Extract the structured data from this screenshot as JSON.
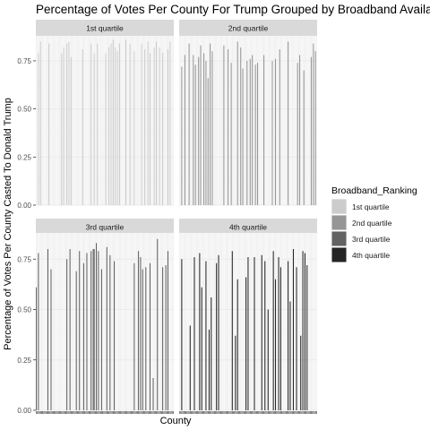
{
  "chart_data": {
    "type": "bar",
    "title": "Percentage of Votes Per County For Trump Grouped by Broadband Availability",
    "xlabel": "County",
    "ylabel": "Percentage of Votes Per County Casted To Donald Trump",
    "ylim": [
      0,
      0.88
    ],
    "y_ticks": [
      0,
      0.25,
      0.5,
      0.75
    ],
    "y_tick_labels": [
      "0.00",
      "0.25",
      "0.50",
      "0.75"
    ],
    "grid": true,
    "legend_position": "right",
    "legend": {
      "title": "Broadband_Ranking",
      "entries": [
        {
          "label": "1st quartile",
          "color": "#cccccc"
        },
        {
          "label": "2nd quartile",
          "color": "#969696"
        },
        {
          "label": "3rd quartile",
          "color": "#636363"
        },
        {
          "label": "4th quartile",
          "color": "#252525"
        }
      ]
    },
    "panels": [
      {
        "strip": "1st quartile",
        "color": "#cccccc",
        "x": [
          2,
          4,
          12,
          24,
          26,
          29,
          31,
          33,
          44,
          52,
          55,
          58,
          66,
          69,
          71,
          73,
          75,
          77,
          79,
          85,
          89,
          93,
          100,
          103,
          106,
          108,
          112,
          114,
          117,
          120,
          125,
          127
        ],
        "values": [
          0.79,
          0.85,
          0.84,
          0.79,
          0.82,
          0.84,
          0.85,
          0.77,
          0.81,
          0.84,
          0.79,
          0.84,
          0.79,
          0.82,
          0.84,
          0.86,
          0.82,
          0.8,
          0.84,
          0.86,
          0.84,
          0.8,
          0.84,
          0.81,
          0.85,
          0.79,
          0.82,
          0.85,
          0.82,
          0.79,
          0.81,
          0.85
        ]
      },
      {
        "strip": "2nd quartile",
        "color": "#969696",
        "x": [
          2,
          5,
          9,
          13,
          15,
          18,
          20,
          23,
          25,
          27,
          29,
          31,
          42,
          46,
          49,
          55,
          58,
          60,
          64,
          67,
          69,
          72,
          74,
          80,
          88,
          91,
          95,
          103,
          112,
          114,
          118,
          125,
          127,
          129
        ],
        "values": [
          0.72,
          0.78,
          0.84,
          0.78,
          0.73,
          0.77,
          0.83,
          0.79,
          0.75,
          0.66,
          0.84,
          0.8,
          0.83,
          0.81,
          0.74,
          0.85,
          0.82,
          0.71,
          0.75,
          0.76,
          0.78,
          0.73,
          0.74,
          0.78,
          0.75,
          0.76,
          0.81,
          0.85,
          0.74,
          0.78,
          0.7,
          0.77,
          0.84,
          0.8
        ]
      },
      {
        "strip": "3rd quartile",
        "color": "#636363",
        "x": [
          0,
          2,
          11,
          14,
          29,
          32,
          38,
          41,
          45,
          48,
          52,
          54,
          55,
          57,
          59,
          62,
          67,
          70,
          74,
          93,
          97,
          99,
          101,
          104,
          108,
          111,
          115,
          120,
          123,
          125
        ],
        "values": [
          0.61,
          0.78,
          0.8,
          0.7,
          0.75,
          0.8,
          0.69,
          0.79,
          0.73,
          0.78,
          0.79,
          0.8,
          0.8,
          0.83,
          0.79,
          0.7,
          0.81,
          0.77,
          0.74,
          0.73,
          0.79,
          0.76,
          0.7,
          0.71,
          0.73,
          0.16,
          0.85,
          0.71,
          0.72,
          0.79
        ]
      },
      {
        "strip": "4th quartile",
        "color": "#252525",
        "x": [
          2,
          10,
          14,
          19,
          21,
          25,
          28,
          30,
          35,
          37,
          50,
          53,
          55,
          63,
          65,
          71,
          78,
          81,
          84,
          89,
          91,
          94,
          96,
          103,
          105,
          108,
          111,
          115,
          117,
          119,
          121
        ],
        "values": [
          0.75,
          0.42,
          0.76,
          0.78,
          0.61,
          0.74,
          0.4,
          0.56,
          0.73,
          0.77,
          0.79,
          0.37,
          0.65,
          0.66,
          0.76,
          0.76,
          0.77,
          0.74,
          0.5,
          0.79,
          0.65,
          0.76,
          0.71,
          0.74,
          0.54,
          0.8,
          0.71,
          0.37,
          0.79,
          0.78,
          0.72
        ]
      }
    ]
  }
}
